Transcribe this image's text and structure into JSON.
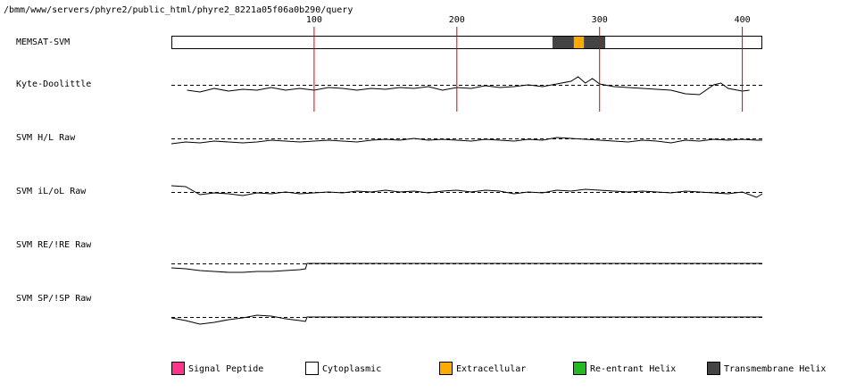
{
  "header": {
    "path": "/bmm/www/servers/phyre2/public_html/phyre2_8221a05f06a0b290/query"
  },
  "chart_data": {
    "type": "track",
    "xlim": [
      0,
      414
    ],
    "xticks": [
      100,
      200,
      300,
      400
    ],
    "tick_color": "#dd0000",
    "memsat": {
      "label": "MEMSAT-SVM",
      "segments": [
        {
          "start": 0,
          "end": 267,
          "color": "#ffffff"
        },
        {
          "start": 267,
          "end": 282,
          "color": "#444444"
        },
        {
          "start": 282,
          "end": 289,
          "color": "#ffaa00"
        },
        {
          "start": 289,
          "end": 304,
          "color": "#444444"
        },
        {
          "start": 304,
          "end": 414,
          "color": "#ffffff"
        }
      ]
    },
    "tracks": [
      {
        "label": "Kyte-Doolittle",
        "ylim": [
          -1,
          1
        ],
        "x": [
          11,
          20,
          30,
          40,
          50,
          60,
          70,
          80,
          90,
          100,
          110,
          120,
          130,
          140,
          150,
          160,
          170,
          180,
          190,
          200,
          210,
          220,
          230,
          240,
          250,
          260,
          270,
          280,
          285,
          290,
          295,
          300,
          310,
          320,
          330,
          340,
          350,
          360,
          370,
          380,
          385,
          390,
          400,
          405
        ],
        "values": [
          -0.3,
          -0.4,
          -0.2,
          -0.35,
          -0.25,
          -0.3,
          -0.15,
          -0.3,
          -0.2,
          -0.3,
          -0.15,
          -0.2,
          -0.3,
          -0.2,
          -0.25,
          -0.15,
          -0.2,
          -0.1,
          -0.3,
          -0.15,
          -0.2,
          -0.05,
          -0.15,
          -0.1,
          0.0,
          -0.1,
          0.05,
          0.2,
          0.45,
          0.1,
          0.35,
          0.05,
          -0.1,
          -0.15,
          -0.2,
          -0.25,
          -0.3,
          -0.5,
          -0.55,
          0.0,
          0.1,
          -0.2,
          -0.35,
          -0.3
        ]
      },
      {
        "label": "SVM H/L Raw",
        "ylim": [
          -1,
          1
        ],
        "x": [
          0,
          10,
          20,
          30,
          40,
          50,
          60,
          70,
          80,
          90,
          100,
          110,
          120,
          130,
          140,
          150,
          160,
          170,
          180,
          190,
          200,
          210,
          220,
          230,
          240,
          250,
          260,
          270,
          280,
          290,
          300,
          310,
          320,
          330,
          340,
          350,
          360,
          370,
          380,
          390,
          400,
          410,
          414
        ],
        "values": [
          -0.3,
          -0.2,
          -0.25,
          -0.15,
          -0.2,
          -0.25,
          -0.2,
          -0.1,
          -0.15,
          -0.2,
          -0.15,
          -0.1,
          -0.15,
          -0.2,
          -0.1,
          -0.05,
          -0.1,
          0.0,
          -0.1,
          -0.05,
          -0.1,
          -0.15,
          -0.05,
          -0.1,
          -0.15,
          -0.05,
          -0.1,
          0.05,
          0.0,
          -0.05,
          -0.1,
          -0.15,
          -0.2,
          -0.1,
          -0.15,
          -0.25,
          -0.1,
          -0.15,
          -0.05,
          -0.1,
          -0.05,
          -0.1,
          -0.1
        ]
      },
      {
        "label": "SVM iL/oL Raw",
        "ylim": [
          -1,
          1
        ],
        "x": [
          0,
          10,
          20,
          30,
          40,
          50,
          60,
          70,
          80,
          90,
          100,
          110,
          120,
          130,
          140,
          150,
          160,
          170,
          180,
          190,
          200,
          210,
          220,
          230,
          240,
          250,
          260,
          270,
          280,
          290,
          300,
          310,
          320,
          330,
          340,
          350,
          360,
          370,
          380,
          390,
          400,
          410,
          414
        ],
        "values": [
          0.35,
          0.3,
          -0.15,
          -0.05,
          -0.1,
          -0.2,
          -0.05,
          -0.1,
          0.0,
          -0.1,
          -0.05,
          0.0,
          -0.05,
          0.05,
          0.0,
          0.1,
          0.0,
          0.05,
          -0.05,
          0.05,
          0.1,
          0.0,
          0.1,
          0.05,
          -0.1,
          0.0,
          -0.05,
          0.1,
          0.05,
          0.15,
          0.1,
          0.05,
          0.0,
          0.05,
          0.0,
          -0.05,
          0.05,
          0.0,
          -0.05,
          -0.1,
          0.0,
          -0.3,
          -0.1
        ]
      },
      {
        "label": "SVM RE/!RE Raw",
        "ylim": [
          -1,
          1
        ],
        "x": [
          0,
          10,
          20,
          30,
          40,
          50,
          60,
          70,
          80,
          90,
          94,
          95,
          414
        ],
        "values": [
          -0.25,
          -0.3,
          -0.4,
          -0.45,
          -0.5,
          -0.5,
          -0.45,
          -0.45,
          -0.4,
          -0.35,
          -0.3,
          0,
          0
        ]
      },
      {
        "label": "SVM SP/!SP Raw",
        "ylim": [
          -1,
          1
        ],
        "x": [
          0,
          10,
          20,
          30,
          40,
          50,
          60,
          70,
          80,
          90,
          94,
          95,
          414
        ],
        "values": [
          -0.05,
          -0.2,
          -0.4,
          -0.3,
          -0.15,
          -0.05,
          0.1,
          0.05,
          -0.1,
          -0.2,
          -0.25,
          0,
          0
        ]
      }
    ],
    "legend": [
      {
        "name": "Signal Peptide",
        "color": "#ff3388"
      },
      {
        "name": "Cytoplasmic",
        "color": "#ffffff"
      },
      {
        "name": "Extracellular",
        "color": "#ffaa00"
      },
      {
        "name": "Re-entrant Helix",
        "color": "#22bb22"
      },
      {
        "name": "Transmembrane Helix",
        "color": "#444444"
      }
    ]
  }
}
